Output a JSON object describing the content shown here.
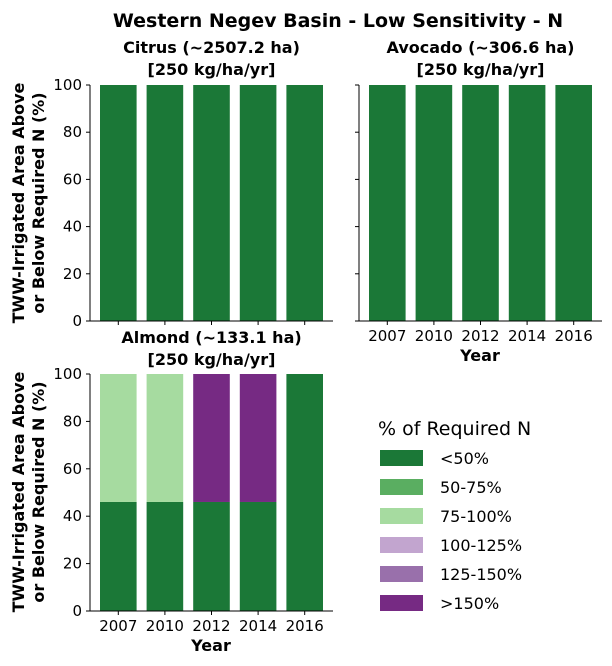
{
  "figure": {
    "title": "Western Negev Basin - Low Sensitivity - N",
    "ylabel_line1": "TWW-Irrigated Area Above",
    "ylabel_line2": "or Below Required N (%)",
    "xlabel": "Year"
  },
  "legend": {
    "title": "% of Required N",
    "items": [
      {
        "label": "<50%",
        "color": "#1b7837"
      },
      {
        "label": "50-75%",
        "color": "#5aae61"
      },
      {
        "label": "75-100%",
        "color": "#a6dba0"
      },
      {
        "label": "100-125%",
        "color": "#c2a5cf"
      },
      {
        "label": "125-150%",
        "color": "#9970ab"
      },
      {
        "label": ">150%",
        "color": "#762a83"
      }
    ]
  },
  "chart_data": [
    {
      "type": "bar",
      "stacked": true,
      "title_line1": "Citrus (~2507.2 ha)",
      "title_line2": "[250 kg/ha/yr]",
      "categories": [
        "2007",
        "2010",
        "2012",
        "2014",
        "2016"
      ],
      "ylim": [
        0,
        100
      ],
      "yticks": [
        0,
        20,
        40,
        60,
        80,
        100
      ],
      "series": [
        {
          "name": "<50%",
          "values": [
            100,
            100,
            100,
            100,
            100
          ]
        }
      ]
    },
    {
      "type": "bar",
      "stacked": true,
      "title_line1": "Avocado (~306.6 ha)",
      "title_line2": "[250 kg/ha/yr]",
      "categories": [
        "2007",
        "2010",
        "2012",
        "2014",
        "2016"
      ],
      "ylim": [
        0,
        100
      ],
      "yticks": [
        0,
        20,
        40,
        60,
        80,
        100
      ],
      "series": [
        {
          "name": "<50%",
          "values": [
            100,
            100,
            100,
            100,
            100
          ]
        }
      ]
    },
    {
      "type": "bar",
      "stacked": true,
      "title_line1": "Almond (~133.1 ha)",
      "title_line2": "[250 kg/ha/yr]",
      "categories": [
        "2007",
        "2010",
        "2012",
        "2014",
        "2016"
      ],
      "ylim": [
        0,
        100
      ],
      "yticks": [
        0,
        20,
        40,
        60,
        80,
        100
      ],
      "series": [
        {
          "name": "<50%",
          "values": [
            46,
            46,
            46,
            46,
            100
          ]
        },
        {
          "name": "75-100%",
          "values": [
            54,
            54,
            0,
            0,
            0
          ]
        },
        {
          "name": ">150%",
          "values": [
            0,
            0,
            54,
            54,
            0
          ]
        }
      ]
    }
  ]
}
